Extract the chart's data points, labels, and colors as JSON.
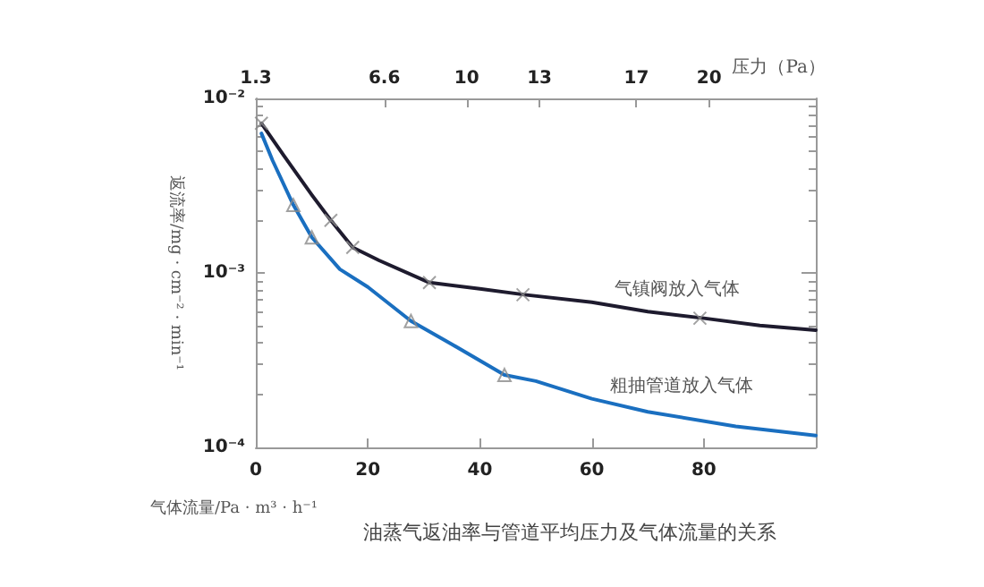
{
  "chart_data": {
    "type": "line",
    "title": "油蒸气返油率与管道平均压力及气体流量的关系",
    "xlabel": "气体流量/Pa · m³ · h⁻¹",
    "ylabel": "返流率/mg · cm⁻² · min⁻¹",
    "x2label": "压力（Pa）",
    "xlim": [
      0,
      100
    ],
    "xticks": [
      0,
      20,
      40,
      60,
      80
    ],
    "x2lim": [
      1.3,
      24.4
    ],
    "x2ticks": [
      1.3,
      6.6,
      10,
      13,
      17,
      20
    ],
    "ylim": [
      0.0001,
      0.01
    ],
    "yticks": [
      {
        "value": 0.01,
        "label": "10⁻²"
      },
      {
        "value": 0.001,
        "label": "10⁻³"
      },
      {
        "value": 0.0001,
        "label": "10⁻⁴"
      }
    ],
    "log": "y",
    "grid": false,
    "legend": false,
    "series": [
      {
        "name": "气镇阀放入气体",
        "color": "#1e1b2e",
        "marker": "none",
        "x": [
          1,
          5,
          10,
          13.4,
          17.3,
          22,
          31,
          40,
          48,
          60,
          70,
          80,
          90,
          100
        ],
        "values": [
          0.0072,
          0.0047,
          0.0028,
          0.002,
          0.0014,
          0.00118,
          0.00088,
          0.00081,
          0.00075,
          0.00068,
          0.0006,
          0.00055,
          0.0005,
          0.00047
        ]
      },
      {
        "name": "粗抽管道放入气体",
        "color": "#1a6fc0",
        "marker": "none",
        "x": [
          1,
          3,
          6.7,
          10,
          15,
          20,
          27.7,
          35,
          44.4,
          50,
          60,
          70,
          85.7,
          100
        ],
        "values": [
          0.0063,
          0.0044,
          0.00245,
          0.0016,
          0.00105,
          0.00083,
          0.00053,
          0.00039,
          0.00026,
          0.00024,
          0.00019,
          0.00016,
          0.000132,
          0.000117
        ]
      },
      {
        "type": "scatter",
        "color": "#8a8a8a",
        "marker": "cross",
        "x": [
          1,
          13.4,
          17.3,
          31,
          47.7,
          79.3
        ],
        "values": [
          0.0072,
          0.002,
          0.0014,
          0.00088,
          0.00075,
          0.00055
        ]
      },
      {
        "type": "scatter",
        "color": "#8a8a8a",
        "marker": "triangle",
        "x": [
          6.7,
          10,
          27.7,
          44.4
        ],
        "values": [
          0.00245,
          0.0016,
          0.00053,
          0.00026
        ]
      }
    ]
  }
}
